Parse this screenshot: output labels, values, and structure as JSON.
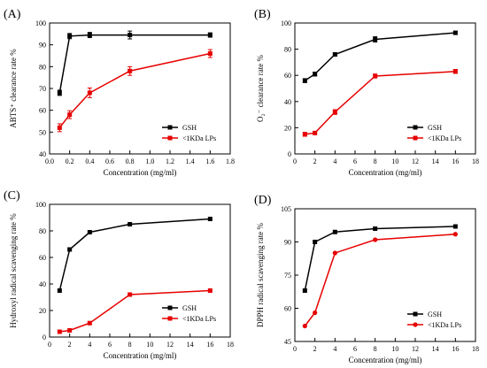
{
  "chart_data": [
    {
      "panel_label": "(A)",
      "type": "line",
      "xlabel": "Concentration (mg/ml)",
      "ylabel": "ABTS⁺ clearance rate %",
      "xlim": [
        0.0,
        1.8
      ],
      "ylim": [
        40,
        100
      ],
      "xticks": [
        "0.0",
        "0.2",
        "0.4",
        "0.6",
        "0.8",
        "1.0",
        "1.2",
        "1.4",
        "1.6",
        "1.8"
      ],
      "yticks": [
        "40",
        "50",
        "60",
        "70",
        "80",
        "90",
        "100"
      ],
      "legend_position": "bottom-right",
      "error_bars": true,
      "series": [
        {
          "name": "GSH",
          "color": "#000000",
          "marker": "square",
          "x": [
            0.1,
            0.2,
            0.4,
            0.8,
            1.6
          ],
          "y": [
            68,
            94,
            94.5,
            94.5,
            94.5
          ],
          "err": [
            1.2,
            1.2,
            1.2,
            1.8,
            1.0
          ]
        },
        {
          "name": "<1KDa LPs",
          "color": "#e60000",
          "marker": "square",
          "x": [
            0.1,
            0.2,
            0.4,
            0.8,
            1.6
          ],
          "y": [
            52,
            58,
            68,
            78,
            86
          ],
          "err": [
            1.8,
            1.8,
            2.2,
            2.0,
            1.8
          ]
        }
      ]
    },
    {
      "panel_label": "(B)",
      "type": "line",
      "xlabel": "Concentration (mg/ml)",
      "ylabel": "O₂⁻ clearance rate %",
      "xlim": [
        0,
        18
      ],
      "ylim": [
        0,
        100
      ],
      "xticks": [
        "0",
        "2",
        "4",
        "6",
        "8",
        "10",
        "12",
        "14",
        "16",
        "18"
      ],
      "yticks": [
        "0",
        "20",
        "40",
        "60",
        "80",
        "100"
      ],
      "legend_position": "bottom-right",
      "error_bars": true,
      "series": [
        {
          "name": "GSH",
          "color": "#000000",
          "marker": "square",
          "x": [
            1,
            2,
            4,
            8,
            16
          ],
          "y": [
            56,
            61,
            76,
            87.5,
            92.5
          ],
          "err": [
            1.5,
            1.5,
            1.2,
            2.0,
            1.2
          ]
        },
        {
          "name": "<1KDa LPs",
          "color": "#e60000",
          "marker": "square",
          "x": [
            1,
            2,
            4,
            8,
            16
          ],
          "y": [
            15,
            16,
            32,
            59.5,
            63
          ],
          "err": [
            1.5,
            1.2,
            1.8,
            1.5,
            1.5
          ]
        }
      ]
    },
    {
      "panel_label": "(C)",
      "type": "line",
      "xlabel": "Concentration (mg/ml)",
      "ylabel": "Hydroxyl radical scavenging rate %",
      "xlim": [
        0,
        18
      ],
      "ylim": [
        0,
        100
      ],
      "xticks": [
        "0",
        "2",
        "4",
        "6",
        "8",
        "10",
        "12",
        "14",
        "16",
        "18"
      ],
      "yticks": [
        "0",
        "20",
        "40",
        "60",
        "80",
        "100"
      ],
      "legend_position": "bottom-right",
      "error_bars": false,
      "series": [
        {
          "name": "GSH",
          "color": "#000000",
          "marker": "square",
          "x": [
            1,
            2,
            4,
            8,
            16
          ],
          "y": [
            35,
            66,
            79,
            85,
            89
          ]
        },
        {
          "name": "<1KDa LPs",
          "color": "#e60000",
          "marker": "square",
          "x": [
            1,
            2,
            4,
            8,
            16
          ],
          "y": [
            4,
            5,
            10.5,
            32,
            35
          ]
        }
      ]
    },
    {
      "panel_label": "(D)",
      "type": "line",
      "xlabel": "Concentration (mg/ml)",
      "ylabel": "DPPH radical scavenging rate %",
      "xlim": [
        0,
        18
      ],
      "ylim": [
        45,
        105
      ],
      "xticks": [
        "0",
        "2",
        "4",
        "6",
        "8",
        "10",
        "12",
        "14",
        "16",
        "18"
      ],
      "yticks": [
        "45",
        "60",
        "75",
        "90",
        "105"
      ],
      "legend_position": "bottom-right",
      "error_bars": false,
      "series": [
        {
          "name": "GSH",
          "color": "#000000",
          "marker": "square",
          "x": [
            1,
            2,
            4,
            8,
            16
          ],
          "y": [
            68,
            90,
            94.5,
            96,
            97
          ]
        },
        {
          "name": "<1KDa LPs",
          "color": "#e60000",
          "marker": "circle",
          "x": [
            1,
            2,
            4,
            8,
            16
          ],
          "y": [
            52,
            58,
            85,
            91,
            93.5
          ]
        }
      ]
    }
  ]
}
